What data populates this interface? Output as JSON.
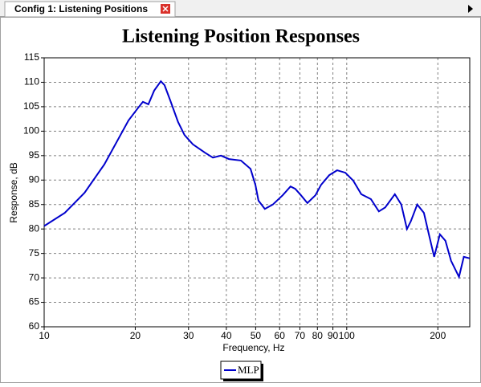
{
  "tab": {
    "title": "Config 1: Listening Positions"
  },
  "chart_data": {
    "type": "line",
    "title": "Listening Position Responses",
    "x_label": "Frequency, Hz",
    "y_label": "Response, dB",
    "log_x": true,
    "grid": true,
    "xlim": [
      10,
      255
    ],
    "ylim": [
      60,
      115
    ],
    "xticks": [
      10,
      20,
      30,
      40,
      50,
      60,
      70,
      80,
      90,
      100,
      200
    ],
    "yticks": [
      60,
      65,
      70,
      75,
      80,
      85,
      90,
      95,
      100,
      105,
      110,
      115
    ],
    "x": [
      10,
      11.7,
      13.6,
      15.8,
      19.0,
      20.4,
      21.2,
      22.1,
      23.1,
      24.3,
      25.0,
      26.1,
      27.7,
      29.1,
      31.0,
      34.0,
      36.1,
      38.4,
      40.8,
      44.7,
      48.1,
      49.9,
      51.1,
      53.6,
      57.0,
      61.4,
      65.2,
      67.6,
      70.6,
      74.1,
      78.8,
      82.2,
      87.5,
      92.9,
      98.9,
      105,
      111.7,
      120.2,
      127.7,
      134,
      144.2,
      151.4,
      158.1,
      162.9,
      171,
      179.9,
      187.6,
      194.5,
      203.1,
      211.9,
      221.2,
      235,
      243.8,
      254.6
    ],
    "series": [
      {
        "name": "MLP",
        "color": "#0000cc",
        "values": [
          80.6,
          83.3,
          87.4,
          93.2,
          102.2,
          104.7,
          106,
          105.5,
          108.3,
          110.2,
          109.4,
          106.3,
          101.9,
          99.2,
          97.3,
          95.6,
          94.6,
          95,
          94.3,
          94,
          92.3,
          89,
          85.8,
          84.1,
          85,
          86.9,
          88.7,
          88.2,
          86.9,
          85.3,
          86.9,
          89,
          91,
          92,
          91.5,
          89.9,
          87.1,
          86.1,
          83.6,
          84.4,
          87.1,
          85,
          80,
          81.6,
          85,
          83.3,
          78.4,
          74.3,
          78.9,
          77.6,
          73.5,
          70.2,
          74.3,
          74
        ]
      }
    ]
  }
}
